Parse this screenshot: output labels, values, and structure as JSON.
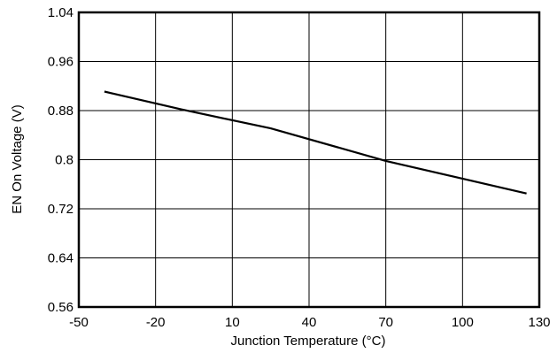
{
  "chart_data": {
    "type": "line",
    "title": "",
    "xlabel": "Junction Temperature (°C)",
    "ylabel": "EN On Voltage (V)",
    "xlim": [
      -50,
      130
    ],
    "ylim": [
      0.56,
      1.04
    ],
    "xticks": [
      -50,
      -20,
      10,
      40,
      70,
      100,
      130
    ],
    "xtick_labels": [
      "-50",
      "-20",
      "10",
      "40",
      "70",
      "100",
      "130"
    ],
    "yticks": [
      0.56,
      0.64,
      0.72,
      0.8,
      0.88,
      0.96,
      1.04
    ],
    "ytick_labels": [
      "0.56",
      "0.64",
      "0.72",
      "0.8",
      "0.88",
      "0.96",
      "1.04"
    ],
    "grid": true,
    "legend": "none",
    "series": [
      {
        "x": [
          -40,
          -10,
          25,
          70,
          125
        ],
        "y": [
          0.911,
          0.882,
          0.851,
          0.798,
          0.745
        ],
        "color": "#000000"
      }
    ]
  }
}
